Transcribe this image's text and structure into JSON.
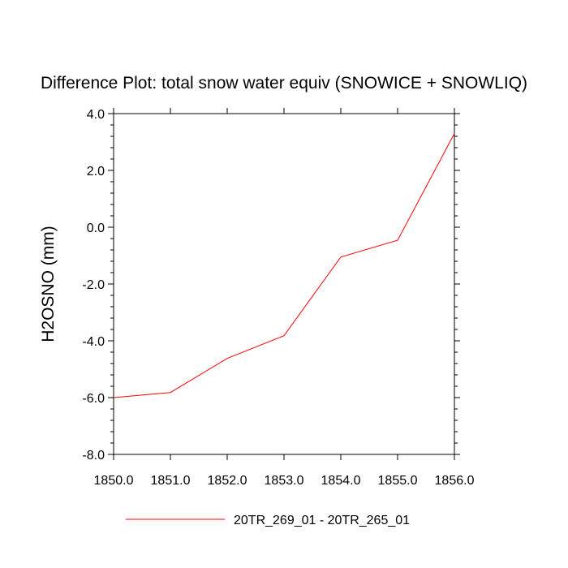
{
  "chart_data": {
    "type": "line",
    "title": "Difference Plot: total snow water equiv (SNOWICE + SNOWLIQ)",
    "xlabel": "",
    "ylabel": "H2OSNO  (mm)",
    "xlim": [
      1850.0,
      1856.0
    ],
    "ylim": [
      -8.0,
      4.0
    ],
    "x_ticks": [
      "1850.0",
      "1851.0",
      "1852.0",
      "1853.0",
      "1854.0",
      "1855.0",
      "1856.0"
    ],
    "y_ticks": [
      "4.0",
      "2.0",
      "0.0",
      "-2.0",
      "-4.0",
      "-6.0",
      "-8.0"
    ],
    "grid": false,
    "legend_position": "bottom",
    "series": [
      {
        "name": "20TR_269_01 - 20TR_265_01",
        "color": "#ff0000",
        "x": [
          1850.0,
          1851.0,
          1852.0,
          1853.0,
          1854.0,
          1855.0,
          1856.0
        ],
        "y": [
          -6.0,
          -5.82,
          -4.62,
          -3.82,
          -1.05,
          -0.46,
          3.3
        ]
      }
    ]
  }
}
